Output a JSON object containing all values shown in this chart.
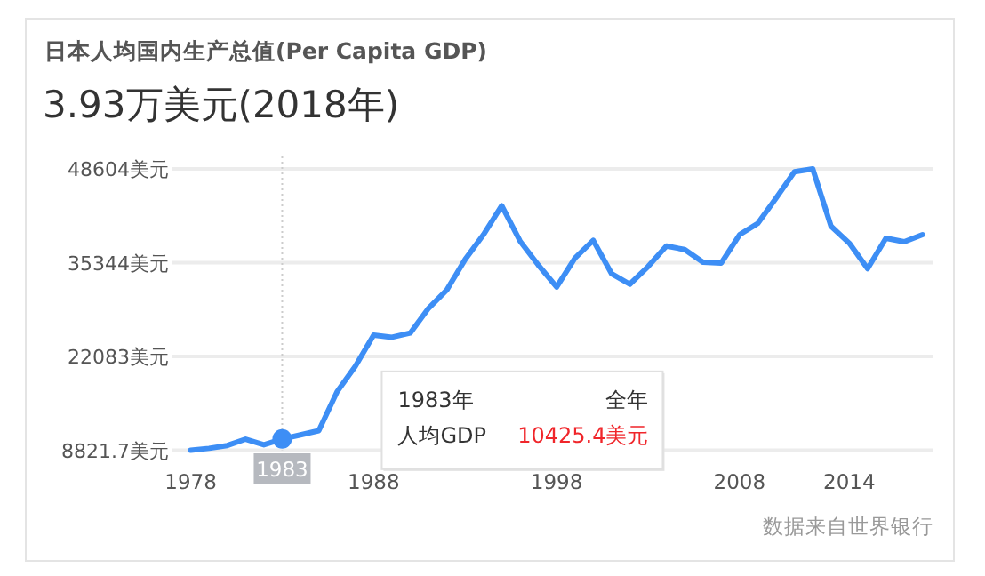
{
  "chart_data": {
    "type": "line",
    "title": "日本人均国内生产总值(Per Capita GDP)",
    "subtitle": "3.93万美元(2018年)",
    "x": [
      1978,
      1979,
      1980,
      1981,
      1982,
      1983,
      1984,
      1985,
      1986,
      1987,
      1988,
      1989,
      1990,
      1991,
      1992,
      1993,
      1994,
      1995,
      1996,
      1997,
      1998,
      1999,
      2000,
      2001,
      2002,
      2003,
      2004,
      2005,
      2006,
      2007,
      2008,
      2009,
      2010,
      2011,
      2012,
      2013,
      2014,
      2015,
      2016,
      2017,
      2018
    ],
    "series": [
      {
        "color": "#3d8ef5",
        "values": [
          8821.7,
          9100,
          9500,
          10400,
          9600,
          10425.4,
          11000,
          11600,
          17100,
          20700,
          25100,
          24800,
          25400,
          28900,
          31500,
          35800,
          39300,
          43400,
          38400,
          35000,
          31900,
          36000,
          38500,
          33800,
          32300,
          34800,
          37700,
          37200,
          35400,
          35300,
          39300,
          40900,
          44500,
          48200,
          48604,
          40500,
          38100,
          34500,
          38800,
          38300,
          39300
        ]
      }
    ],
    "xlim": [
      1977,
      2018.6
    ],
    "ylim": [
      8821.7,
      48604
    ],
    "xticks": [
      1978,
      1988,
      1998,
      2008,
      2014
    ],
    "yticks": [
      {
        "value": 8821.7,
        "label": "8821.7美元"
      },
      {
        "value": 22083,
        "label": "22083美元"
      },
      {
        "value": 35344,
        "label": "35344美元"
      },
      {
        "value": 48604,
        "label": "48604美元"
      }
    ],
    "grid": "y",
    "marker": "none",
    "line_style": "solid",
    "annotations": [
      {
        "text": "1983",
        "x": 1983
      },
      "1983年",
      "全年",
      "人均GDP",
      "10425.4美元",
      "数据来自世界银行"
    ]
  }
}
